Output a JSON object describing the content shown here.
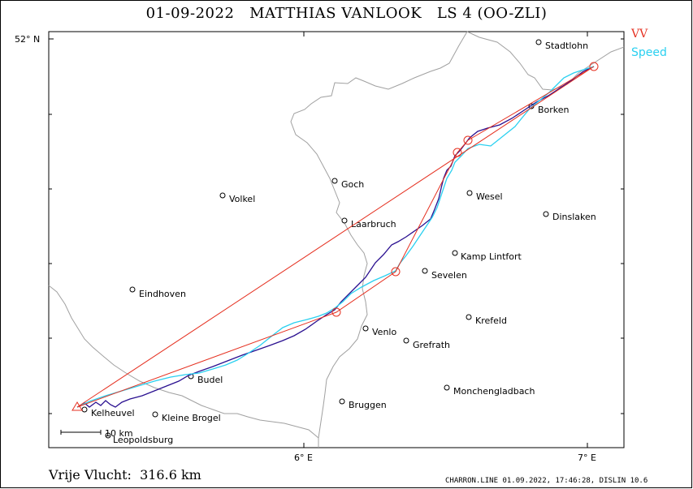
{
  "header": {
    "date": "01-09-2022",
    "pilot": "MATTHIAS VANLOOK",
    "glider": "LS 4 (OO-ZLI)"
  },
  "legend": {
    "vv": "VV",
    "speed": "Speed",
    "vv_color": "#e53020",
    "speed_color": "#2ad0f0",
    "track_color": "#2a1090"
  },
  "axes": {
    "lat_label": "52° N",
    "lon_6": "6° E",
    "lon_7": "7° E"
  },
  "scale_bar": {
    "label": "10 km"
  },
  "cities": [
    {
      "name": "Stadtlohn"
    },
    {
      "name": "Borken"
    },
    {
      "name": "Goch"
    },
    {
      "name": "Volkel"
    },
    {
      "name": "Wesel"
    },
    {
      "name": "Laarbruch"
    },
    {
      "name": "Dinslaken"
    },
    {
      "name": "Kamp Lintfort"
    },
    {
      "name": "Sevelen"
    },
    {
      "name": "Eindhoven"
    },
    {
      "name": "Krefeld"
    },
    {
      "name": "Venlo"
    },
    {
      "name": "Grefrath"
    },
    {
      "name": "Budel"
    },
    {
      "name": "Monchengladbach"
    },
    {
      "name": "Bruggen"
    },
    {
      "name": "Kelheuvel"
    },
    {
      "name": "Kleine Brogel"
    },
    {
      "name": "Leopoldsburg"
    }
  ],
  "footer": {
    "distance": "Vrije Vlucht:  316.6 km",
    "info": "CHARRON.LINE 01.09.2022, 17:46:28, DISLIN 10.6"
  }
}
